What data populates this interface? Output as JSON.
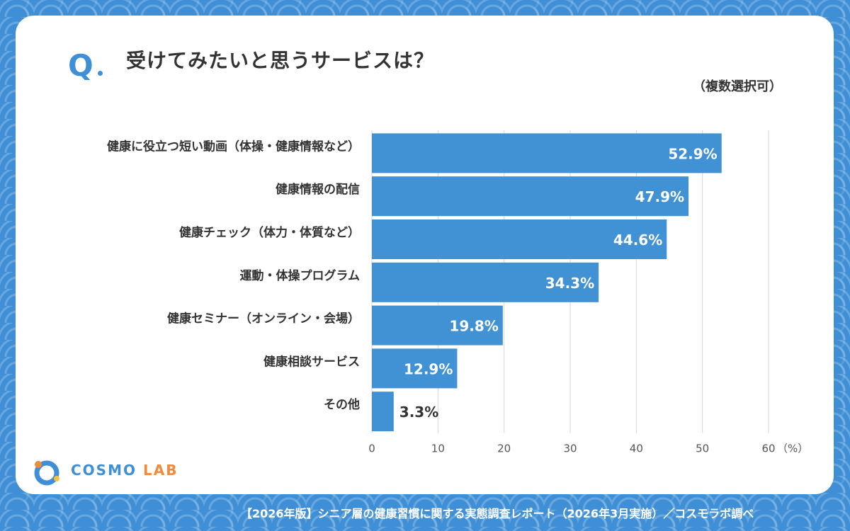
{
  "header": {
    "q_label": "Q",
    "title": "受けてみたいと思うサービスは？",
    "note": "（複数選択可）"
  },
  "chart_data": {
    "type": "bar",
    "orientation": "horizontal",
    "categories": [
      "健康に役立つ短い動画（体操・健康情報など）",
      "健康情報の配信",
      "健康チェック（体力・体質など）",
      "運動・体操プログラム",
      "健康セミナー（オンライン・会場）",
      "健康相談サービス",
      "その他"
    ],
    "values": [
      52.9,
      47.9,
      44.6,
      34.3,
      19.8,
      12.9,
      3.3
    ],
    "value_labels": [
      "52.9%",
      "47.9%",
      "44.6%",
      "34.3%",
      "19.8%",
      "12.9%",
      "3.3%"
    ],
    "xlim": [
      0,
      60
    ],
    "xticks": [
      0,
      10,
      20,
      30,
      40,
      50,
      60
    ],
    "xunit": "（%）",
    "grid": true,
    "bar_color": "#4191d5",
    "label_color": "#333333"
  },
  "logo": {
    "cosmo": "COSMO",
    "lab": "LAB"
  },
  "footer": {
    "source": "【2026年版】シニア層の健康習慣に関する実態調査レポート（2026年3月実施）／コスモラボ調べ"
  },
  "colors": {
    "background": "#3f8fd6",
    "accent": "#3f8fd6",
    "logo_orange": "#f08a3c"
  }
}
